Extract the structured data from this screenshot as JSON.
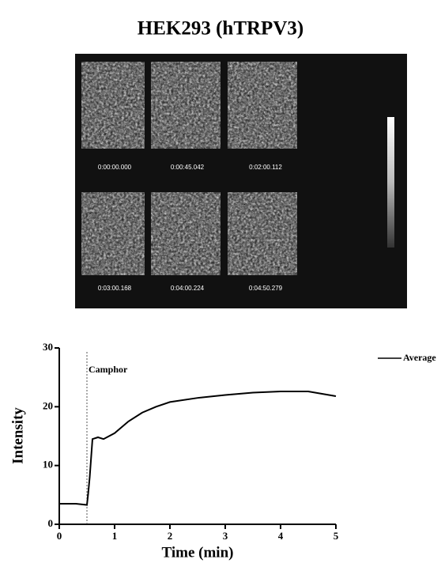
{
  "figure_title": "HEK293 (hTRPV3)",
  "image_panel": {
    "timestamps": [
      "0:00:00.000",
      "0:00:45.042",
      "0:02:00.112",
      "0:03:00.168",
      "0:04:00.224",
      "0:04:50.279"
    ]
  },
  "chart_data": {
    "type": "line",
    "x": [
      0,
      0.1,
      0.2,
      0.3,
      0.4,
      0.5,
      0.52,
      0.55,
      0.6,
      0.7,
      0.8,
      0.9,
      1.0,
      1.25,
      1.5,
      1.75,
      2.0,
      2.5,
      3.0,
      3.5,
      4.0,
      4.5,
      4.75,
      5.0
    ],
    "series": [
      {
        "name": "Average",
        "color": "#000000",
        "values": [
          3.5,
          3.5,
          3.5,
          3.5,
          3.4,
          3.3,
          5,
          8,
          14.5,
          14.8,
          14.5,
          15,
          15.5,
          17.5,
          19,
          20,
          20.8,
          21.5,
          22,
          22.4,
          22.6,
          22.6,
          22.2,
          21.8
        ]
      }
    ],
    "xlabel": "Time (min)",
    "ylabel": "Intensity",
    "xlim": [
      0,
      5
    ],
    "xticks": [
      0,
      1,
      2,
      3,
      4,
      5
    ],
    "ylim": [
      0,
      30
    ],
    "yticks": [
      0,
      10,
      20,
      30
    ],
    "annotations": [
      {
        "text": "Camphor",
        "x": 0.5
      }
    ],
    "legend": "right"
  }
}
